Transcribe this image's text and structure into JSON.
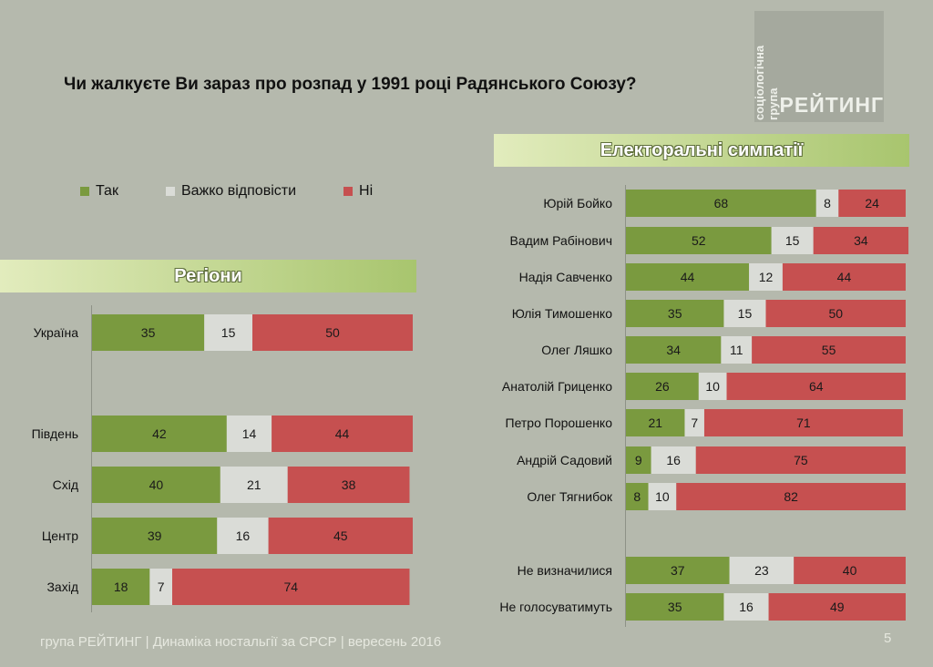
{
  "title": "Чи жалкуєте Ви зараз про розпад у 1991 році Радянського Союзу?",
  "logo": {
    "vertical_text": "соціологічна група",
    "main_text": "РЕЙТИНГ"
  },
  "colors": {
    "yes": "#7a9a3f",
    "hard": "#dadcd7",
    "no": "#c65050",
    "background": "#b5b9ad"
  },
  "legend": [
    {
      "label": "Так",
      "color": "#7a9a3f"
    },
    {
      "label": "Важко відповісти",
      "color": "#dadcd7"
    },
    {
      "label": "Ні",
      "color": "#c65050"
    }
  ],
  "chart_data": [
    {
      "type": "bar",
      "stacked": true,
      "orientation": "horizontal",
      "title": "Регіони",
      "categories": [
        "Україна",
        "",
        "Південь",
        "Схід",
        "Центр",
        "Захід"
      ],
      "series": [
        {
          "name": "Так",
          "values": [
            35,
            null,
            42,
            40,
            39,
            18
          ]
        },
        {
          "name": "Важко відповісти",
          "values": [
            15,
            null,
            14,
            21,
            16,
            7
          ]
        },
        {
          "name": "Ні",
          "values": [
            50,
            null,
            44,
            38,
            45,
            74
          ]
        }
      ],
      "xlim": [
        0,
        100
      ]
    },
    {
      "type": "bar",
      "stacked": true,
      "orientation": "horizontal",
      "title": "Електоральні симпатії",
      "categories": [
        "Юрій Бойко",
        "Вадим Рабінович",
        "Надія Савченко",
        "Юлія Тимошенко",
        "Олег Ляшко",
        "Анатолій Гриценко",
        "Петро Порошенко",
        "Андрій Садовий",
        "Олег Тягнибок",
        "",
        "Не визначилися",
        "Не голосуватимуть"
      ],
      "series": [
        {
          "name": "Так",
          "values": [
            68,
            52,
            44,
            35,
            34,
            26,
            21,
            9,
            8,
            null,
            37,
            35
          ]
        },
        {
          "name": "Важко відповісти",
          "values": [
            8,
            15,
            12,
            15,
            11,
            10,
            7,
            16,
            10,
            null,
            23,
            16
          ]
        },
        {
          "name": "Ні",
          "values": [
            24,
            34,
            44,
            50,
            55,
            64,
            71,
            75,
            82,
            null,
            40,
            49
          ]
        }
      ],
      "xlim": [
        0,
        100
      ]
    }
  ],
  "footer": "група РЕЙТИНГ  |  Динаміка ностальгії за СРСР  |  вересень 2016",
  "page_number": "5"
}
